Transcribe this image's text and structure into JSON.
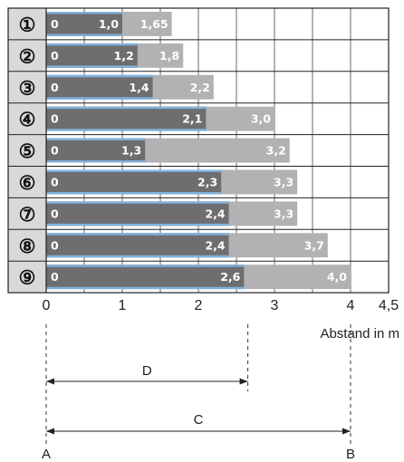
{
  "chart_data": {
    "type": "bar",
    "orientation": "horizontal",
    "categories": [
      "①",
      "②",
      "③",
      "④",
      "⑤",
      "⑥",
      "⑦",
      "⑧",
      "⑨"
    ],
    "series": [
      {
        "values": [
          1.0,
          1.2,
          1.4,
          2.1,
          1.3,
          2.3,
          2.4,
          2.4,
          2.6
        ],
        "labels": [
          "1,0",
          "1,2",
          "1,4",
          "2,1",
          "1,3",
          "2,3",
          "2,4",
          "2,4",
          "2,6"
        ],
        "color": "#6e6e70"
      },
      {
        "values": [
          1.65,
          1.8,
          2.2,
          3.0,
          3.2,
          3.3,
          3.3,
          3.7,
          4.0
        ],
        "labels": [
          "1,65",
          "1,8",
          "2,2",
          "3,0",
          "3,2",
          "3,3",
          "3,3",
          "3,7",
          "4,0"
        ],
        "color": "#b2b2b4"
      }
    ],
    "start_label": "0",
    "xlim": [
      0,
      4.5
    ],
    "xticks": [
      0,
      1,
      2,
      3,
      4,
      4.5
    ],
    "xtick_labels": [
      "0",
      "1",
      "2",
      "3",
      "4",
      "4,5"
    ],
    "xlabel": "Abstand in m",
    "grid": true,
    "colors": {
      "accent_line": "#7fb2dd",
      "row_label_bg": "#d9d9d9"
    }
  },
  "dimensions": {
    "D": {
      "label": "D",
      "value": 2.65
    },
    "C": {
      "label": "C",
      "value": 4.0
    },
    "A": "A",
    "B": "B"
  }
}
